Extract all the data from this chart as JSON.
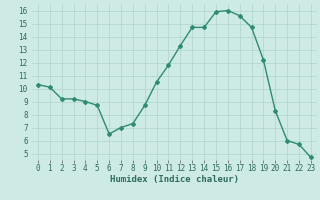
{
  "x": [
    0,
    1,
    2,
    3,
    4,
    5,
    6,
    7,
    8,
    9,
    10,
    11,
    12,
    13,
    14,
    15,
    16,
    17,
    18,
    19,
    20,
    21,
    22,
    23
  ],
  "y": [
    10.3,
    10.1,
    9.2,
    9.2,
    9.0,
    8.7,
    6.5,
    7.0,
    7.3,
    8.7,
    10.5,
    11.8,
    13.3,
    14.7,
    14.7,
    15.9,
    16.0,
    15.6,
    14.7,
    12.2,
    8.3,
    6.0,
    5.7,
    4.7
  ],
  "line_color": "#2e8b74",
  "marker": "D",
  "marker_size": 2.0,
  "linewidth": 1.0,
  "xlabel": "Humidex (Indice chaleur)",
  "xlim": [
    -0.5,
    23.5
  ],
  "ylim": [
    4.5,
    16.5
  ],
  "yticks": [
    5,
    6,
    7,
    8,
    9,
    10,
    11,
    12,
    13,
    14,
    15,
    16
  ],
  "xticks": [
    0,
    1,
    2,
    3,
    4,
    5,
    6,
    7,
    8,
    9,
    10,
    11,
    12,
    13,
    14,
    15,
    16,
    17,
    18,
    19,
    20,
    21,
    22,
    23
  ],
  "bg_color": "#ceeae4",
  "grid_color": "#aed4ce",
  "tick_fontsize": 5.5,
  "label_fontsize": 6.5
}
